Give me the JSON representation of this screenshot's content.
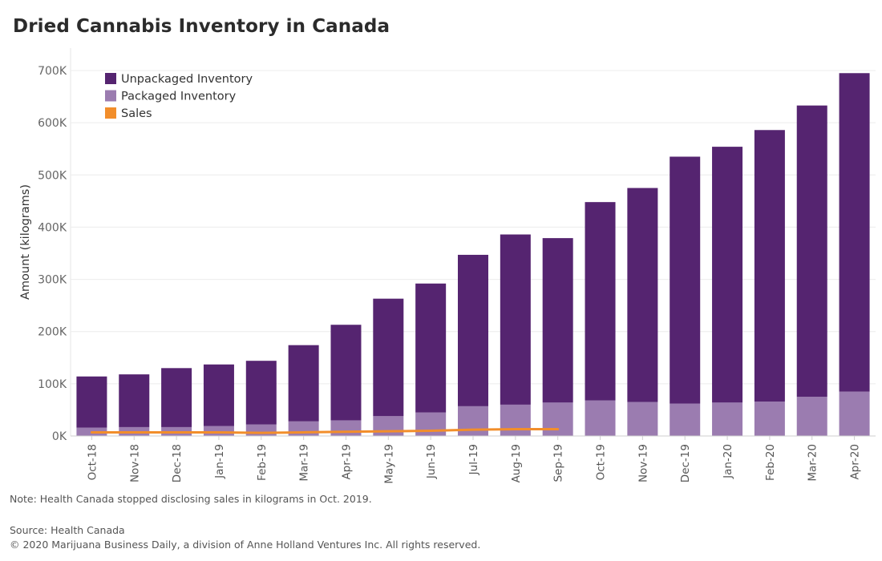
{
  "chart_data": {
    "type": "bar",
    "title": "Dried Cannabis Inventory in Canada",
    "xlabel": "",
    "ylabel": "Amount (kilograms)",
    "ylim": [
      0,
      700000
    ],
    "yticks": [
      "0K",
      "100K",
      "200K",
      "300K",
      "400K",
      "500K",
      "600K",
      "700K"
    ],
    "grid": true,
    "legend_position": "top-left",
    "categories": [
      "Oct-18",
      "Nov-18",
      "Dec-18",
      "Jan-19",
      "Feb-19",
      "Mar-19",
      "Apr-19",
      "May-19",
      "Jun-19",
      "Jul-19",
      "Aug-19",
      "Sep-19",
      "Oct-19",
      "Nov-19",
      "Dec-19",
      "Jan-20",
      "Feb-20",
      "Mar-20",
      "Apr-20"
    ],
    "series": [
      {
        "name": "Unpackaged Inventory",
        "kind": "stacked-bar",
        "color": "#552470",
        "values": [
          98000,
          101000,
          113000,
          118000,
          122000,
          146000,
          183000,
          225000,
          247000,
          290000,
          326000,
          315000,
          380000,
          410000,
          473000,
          490000,
          520000,
          558000,
          610000
        ]
      },
      {
        "name": "Packaged Inventory",
        "kind": "stacked-bar",
        "color": "#9b7cb0",
        "values": [
          16000,
          17000,
          17000,
          19000,
          22000,
          28000,
          30000,
          38000,
          45000,
          57000,
          60000,
          64000,
          68000,
          65000,
          62000,
          64000,
          66000,
          75000,
          85000
        ]
      },
      {
        "name": "Sales",
        "kind": "line",
        "color": "#f28e2b",
        "values": [
          7000,
          7000,
          7000,
          7000,
          6000,
          7000,
          8000,
          9000,
          10000,
          12000,
          13000,
          13000,
          null,
          null,
          null,
          null,
          null,
          null,
          null
        ]
      }
    ]
  },
  "footer": {
    "note": "Note: Health Canada stopped disclosing sales in kilograms in Oct. 2019.",
    "source": "Source: Health Canada",
    "copyright": "© 2020 Marijuana Business Daily, a division of Anne Holland Ventures Inc. All rights reserved."
  }
}
